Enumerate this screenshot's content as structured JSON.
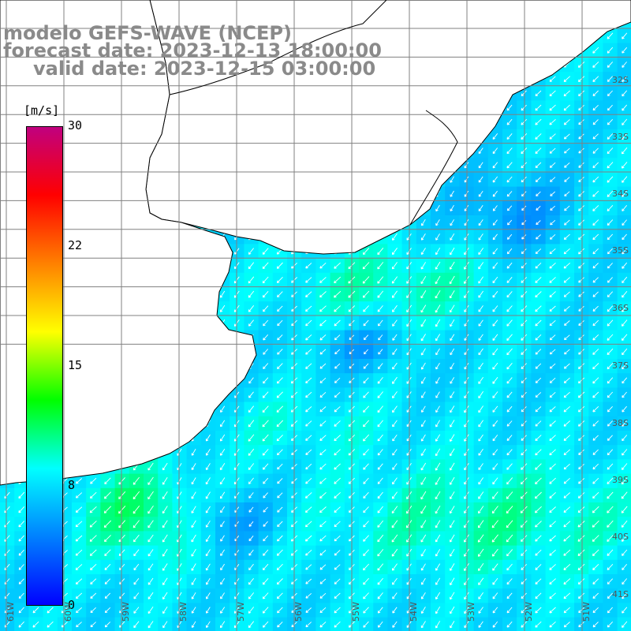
{
  "title": {
    "line1": "modelo GEFS-WAVE (NCEP)",
    "line2": "forecast date: 2023-12-13 18:00:00",
    "line3": "valid date: 2023-12-15 03:00:00"
  },
  "colorbar": {
    "unit_label": "[m/s]",
    "ticks": [
      "30",
      "22",
      "15",
      "8",
      "0"
    ],
    "min": 0,
    "max": 30,
    "colors": [
      "#0000ff",
      "#0080ff",
      "#00ffff",
      "#00ff00",
      "#ffff00",
      "#ff8000",
      "#ff0000",
      "#c00080"
    ]
  },
  "map": {
    "land_color": "#ffffff",
    "grid_color": "#808080",
    "coast_color": "#000000",
    "arrow_color": "#ffffff",
    "lat_labels": [
      "32S",
      "33S",
      "34S",
      "35S",
      "36S",
      "37S",
      "38S",
      "39S",
      "40S",
      "41S"
    ],
    "lon_labels": [
      "61W",
      "60W",
      "59W",
      "58W",
      "57W",
      "56W",
      "55W",
      "54W",
      "53W",
      "52W",
      "51W"
    ],
    "wind_direction": "from northeast"
  }
}
